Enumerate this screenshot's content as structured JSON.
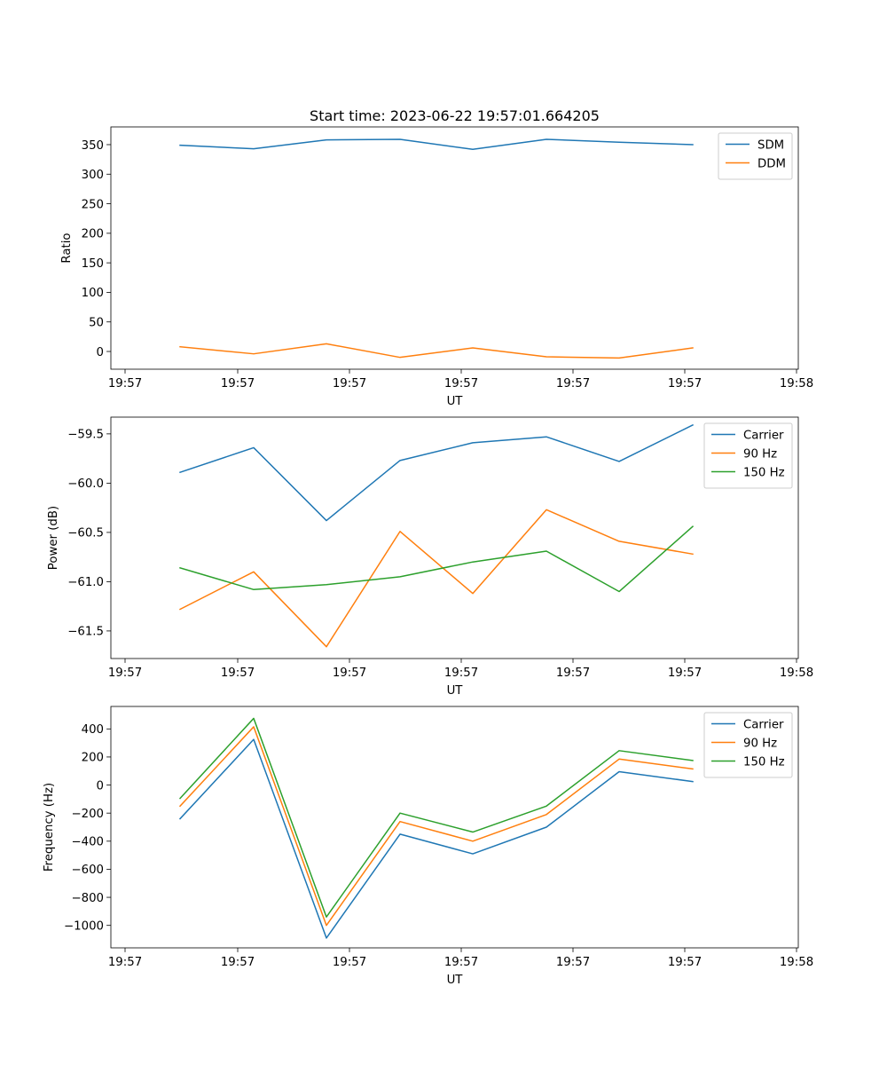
{
  "title": "Start time: 2023-06-22 19:57:01.664205",
  "chart_data": [
    {
      "type": "line",
      "xlabel": "UT",
      "ylabel": "Ratio",
      "x_tick_labels": [
        "19:57",
        "19:57",
        "19:57",
        "19:57",
        "19:57",
        "19:57",
        "19:58"
      ],
      "yticks": [
        0,
        50,
        100,
        150,
        200,
        250,
        300,
        350
      ],
      "ylim": [
        -30,
        380
      ],
      "legend_position": "upper-right",
      "grid": false,
      "series": [
        {
          "name": "SDM",
          "color": "#1f77b4",
          "values": [
            349,
            343,
            358,
            359,
            342,
            359,
            354,
            350
          ]
        },
        {
          "name": "DDM",
          "color": "#ff7f0e",
          "values": [
            8,
            -4,
            13,
            -10,
            6,
            -9,
            -11,
            6
          ]
        }
      ]
    },
    {
      "type": "line",
      "xlabel": "UT",
      "ylabel": "Power (dB)",
      "x_tick_labels": [
        "19:57",
        "19:57",
        "19:57",
        "19:57",
        "19:57",
        "19:57",
        "19:58"
      ],
      "yticks": [
        -61.5,
        -61.0,
        -60.5,
        -60.0,
        -59.5
      ],
      "ytick_labels": [
        "−61.5",
        "−61.0",
        "−60.5",
        "−60.0",
        "−59.5"
      ],
      "ylim": [
        -61.78,
        -59.33
      ],
      "legend_position": "upper-right",
      "grid": false,
      "series": [
        {
          "name": "Carrier",
          "color": "#1f77b4",
          "values": [
            -59.89,
            -59.64,
            -60.38,
            -59.77,
            -59.59,
            -59.53,
            -59.78,
            -59.41
          ]
        },
        {
          "name": "90 Hz",
          "color": "#ff7f0e",
          "values": [
            -61.28,
            -60.9,
            -61.66,
            -60.49,
            -61.12,
            -60.27,
            -60.59,
            -60.72
          ]
        },
        {
          "name": "150 Hz",
          "color": "#2ca02c",
          "values": [
            -60.86,
            -61.08,
            -61.03,
            -60.95,
            -60.8,
            -60.69,
            -61.1,
            -60.44
          ]
        }
      ]
    },
    {
      "type": "line",
      "xlabel": "UT",
      "ylabel": "Frequency (Hz)",
      "x_tick_labels": [
        "19:57",
        "19:57",
        "19:57",
        "19:57",
        "19:57",
        "19:57",
        "19:58"
      ],
      "yticks": [
        -1000,
        -800,
        -600,
        -400,
        -200,
        0,
        200,
        400
      ],
      "ytick_labels": [
        "−1000",
        "−800",
        "−600",
        "−400",
        "−200",
        "0",
        "200",
        "400"
      ],
      "ylim": [
        -1160,
        560
      ],
      "legend_position": "upper-right",
      "grid": false,
      "series": [
        {
          "name": "Carrier",
          "color": "#1f77b4",
          "values": [
            -240,
            325,
            -1090,
            -350,
            -490,
            -300,
            95,
            25
          ]
        },
        {
          "name": "90 Hz",
          "color": "#ff7f0e",
          "values": [
            -150,
            415,
            -1000,
            -260,
            -400,
            -210,
            185,
            115
          ]
        },
        {
          "name": "150 Hz",
          "color": "#2ca02c",
          "values": [
            -95,
            475,
            -940,
            -200,
            -335,
            -150,
            245,
            175
          ]
        }
      ]
    }
  ]
}
